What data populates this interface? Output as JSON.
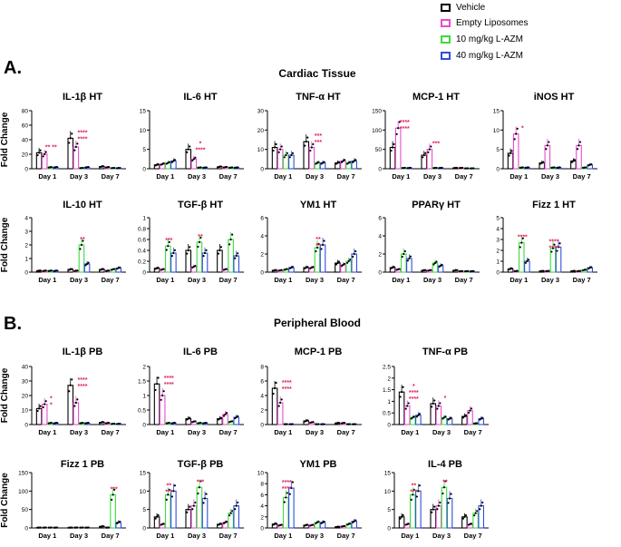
{
  "legend": [
    {
      "label": "Vehicle",
      "color": "#000000"
    },
    {
      "label": "Empty Liposomes",
      "color": "#e94ccf"
    },
    {
      "label": "10 mg/kg L-AZM",
      "color": "#3ddb3d"
    },
    {
      "label": "40 mg/kg L-AZM",
      "color": "#2f4fd6"
    }
  ],
  "sections": [
    {
      "letter": "A.",
      "title": "Cardiac Tissue"
    },
    {
      "letter": "B.",
      "title": "Peripheral Blood"
    }
  ],
  "chart_data": [
    {
      "type": "bar",
      "title": "IL-1β HT",
      "ylabel": "Fold Change",
      "ylim": [
        0,
        80
      ],
      "yticks": [
        0,
        20,
        40,
        60,
        80
      ],
      "categories": [
        "Day 1",
        "Day 3",
        "Day 7"
      ],
      "series": [
        {
          "name": "Vehicle",
          "values": [
            22,
            42,
            3
          ]
        },
        {
          "name": "Empty Liposomes",
          "values": [
            20,
            30,
            2
          ]
        },
        {
          "name": "10 mg/kg L-AZM",
          "values": [
            2,
            1,
            1
          ]
        },
        {
          "name": "40 mg/kg L-AZM",
          "values": [
            2,
            2,
            1
          ]
        }
      ],
      "annotations": [
        {
          "day": 0,
          "text": "** **"
        },
        {
          "day": 1,
          "text": "****"
        },
        {
          "day": 1,
          "text": "****"
        }
      ]
    },
    {
      "type": "bar",
      "title": "IL-6 HT",
      "ylabel": "",
      "ylim": [
        0,
        15
      ],
      "yticks": [
        0,
        5,
        10,
        15
      ],
      "categories": [
        "Day 1",
        "Day 3",
        "Day 7"
      ],
      "series": [
        {
          "name": "Vehicle",
          "values": [
            1,
            5,
            0.5
          ]
        },
        {
          "name": "Empty Liposomes",
          "values": [
            1.2,
            2.5,
            0.4
          ]
        },
        {
          "name": "10 mg/kg L-AZM",
          "values": [
            1.5,
            0.3,
            0.3
          ]
        },
        {
          "name": "40 mg/kg L-AZM",
          "values": [
            2,
            0.3,
            0.3
          ]
        }
      ],
      "annotations": [
        {
          "day": 1,
          "text": "*"
        },
        {
          "day": 1,
          "text": "****"
        }
      ]
    },
    {
      "type": "bar",
      "title": "TNF-α HT",
      "ylabel": "",
      "ylim": [
        0,
        30
      ],
      "yticks": [
        0,
        10,
        20,
        30
      ],
      "categories": [
        "Day 1",
        "Day 3",
        "Day 7"
      ],
      "series": [
        {
          "name": "Vehicle",
          "values": [
            11,
            14,
            3
          ]
        },
        {
          "name": "Empty Liposomes",
          "values": [
            10,
            11,
            4
          ]
        },
        {
          "name": "10 mg/kg L-AZM",
          "values": [
            7,
            3,
            3
          ]
        },
        {
          "name": "40 mg/kg L-AZM",
          "values": [
            7,
            3,
            4
          ]
        }
      ],
      "annotations": [
        {
          "day": 1,
          "text": "***"
        },
        {
          "day": 1,
          "text": "***"
        }
      ]
    },
    {
      "type": "bar",
      "title": "MCP-1 HT",
      "ylabel": "",
      "ylim": [
        0,
        150
      ],
      "yticks": [
        0,
        50,
        100,
        150
      ],
      "categories": [
        "Day 1",
        "Day 3",
        "Day 7"
      ],
      "series": [
        {
          "name": "Vehicle",
          "values": [
            55,
            35,
            2
          ]
        },
        {
          "name": "Empty Liposomes",
          "values": [
            105,
            50,
            2
          ]
        },
        {
          "name": "10 mg/kg L-AZM",
          "values": [
            2,
            2,
            1
          ]
        },
        {
          "name": "40 mg/kg L-AZM",
          "values": [
            2,
            2,
            1
          ]
        }
      ],
      "annotations": [
        {
          "day": 0,
          "text": "****"
        },
        {
          "day": 0,
          "text": "****"
        },
        {
          "day": 1,
          "text": "***"
        }
      ]
    },
    {
      "type": "bar",
      "title": "iNOS HT",
      "ylabel": "",
      "ylim": [
        0,
        15
      ],
      "yticks": [
        0,
        5,
        10,
        15
      ],
      "categories": [
        "Day 1",
        "Day 3",
        "Day 7"
      ],
      "series": [
        {
          "name": "Vehicle",
          "values": [
            4,
            1.5,
            2
          ]
        },
        {
          "name": "Empty Liposomes",
          "values": [
            9,
            6,
            6
          ]
        },
        {
          "name": "10 mg/kg L-AZM",
          "values": [
            0.3,
            0.3,
            0.3
          ]
        },
        {
          "name": "40 mg/kg L-AZM",
          "values": [
            0.3,
            0.3,
            1
          ]
        }
      ],
      "annotations": [
        {
          "day": 0,
          "text": "*"
        }
      ]
    },
    {
      "type": "bar",
      "title": "IL-10 HT",
      "ylabel": "Fold Change",
      "ylim": [
        0,
        4
      ],
      "yticks": [
        0,
        1,
        2,
        3,
        4
      ],
      "categories": [
        "Day 1",
        "Day 3",
        "Day 7"
      ],
      "series": [
        {
          "name": "Vehicle",
          "values": [
            0.1,
            0.2,
            0.2
          ]
        },
        {
          "name": "Empty Liposomes",
          "values": [
            0.1,
            0.1,
            0.1
          ]
        },
        {
          "name": "10 mg/kg L-AZM",
          "values": [
            0.1,
            2.0,
            0.2
          ]
        },
        {
          "name": "40 mg/kg L-AZM",
          "values": [
            0.1,
            0.6,
            0.3
          ]
        }
      ],
      "annotations": [
        {
          "day": 1,
          "text": "**"
        }
      ]
    },
    {
      "type": "bar",
      "title": "TGF-β HT",
      "ylabel": "",
      "ylim": [
        0,
        1.0
      ],
      "yticks": [
        0,
        0.2,
        0.4,
        0.6,
        0.8,
        1.0
      ],
      "categories": [
        "Day 1",
        "Day 3",
        "Day 7"
      ],
      "series": [
        {
          "name": "Vehicle",
          "values": [
            0.07,
            0.4,
            0.4
          ]
        },
        {
          "name": "Empty Liposomes",
          "values": [
            0.05,
            0.1,
            0.05
          ]
        },
        {
          "name": "10 mg/kg L-AZM",
          "values": [
            0.48,
            0.55,
            0.6
          ]
        },
        {
          "name": "40 mg/kg L-AZM",
          "values": [
            0.35,
            0.35,
            0.3
          ]
        }
      ],
      "annotations": [
        {
          "day": 0,
          "text": "***"
        },
        {
          "day": 1,
          "text": "**"
        }
      ]
    },
    {
      "type": "bar",
      "title": "YM1 HT",
      "ylabel": "",
      "ylim": [
        0,
        6
      ],
      "yticks": [
        0,
        2,
        4,
        6
      ],
      "categories": [
        "Day 1",
        "Day 3",
        "Day 7"
      ],
      "series": [
        {
          "name": "Vehicle",
          "values": [
            0.2,
            0.5,
            1
          ]
        },
        {
          "name": "Empty Liposomes",
          "values": [
            0.2,
            0.5,
            0.8
          ]
        },
        {
          "name": "10 mg/kg L-AZM",
          "values": [
            0.3,
            2.7,
            1.2
          ]
        },
        {
          "name": "40 mg/kg L-AZM",
          "values": [
            0.5,
            3.0,
            2.0
          ]
        }
      ],
      "annotations": [
        {
          "day": 1,
          "text": "**"
        },
        {
          "day": 1,
          "text": "**"
        }
      ]
    },
    {
      "type": "bar",
      "title": "PPARγ HT",
      "ylabel": "",
      "ylim": [
        0,
        6
      ],
      "yticks": [
        0,
        2,
        4,
        6
      ],
      "categories": [
        "Day 1",
        "Day 3",
        "Day 7"
      ],
      "series": [
        {
          "name": "Vehicle",
          "values": [
            0.5,
            0.2,
            0.2
          ]
        },
        {
          "name": "Empty Liposomes",
          "values": [
            0.3,
            0.2,
            0.1
          ]
        },
        {
          "name": "10 mg/kg L-AZM",
          "values": [
            2,
            1,
            0.1
          ]
        },
        {
          "name": "40 mg/kg L-AZM",
          "values": [
            1.5,
            0.7,
            0.1
          ]
        }
      ],
      "annotations": []
    },
    {
      "type": "bar",
      "title": "Fizz 1 HT",
      "ylabel": "",
      "ylim": [
        0,
        5
      ],
      "yticks": [
        0,
        1,
        2,
        3,
        4,
        5
      ],
      "categories": [
        "Day 1",
        "Day 3",
        "Day 7"
      ],
      "series": [
        {
          "name": "Vehicle",
          "values": [
            0.3,
            0.1,
            0.1
          ]
        },
        {
          "name": "Empty Liposomes",
          "values": [
            0.1,
            0.1,
            0.1
          ]
        },
        {
          "name": "10 mg/kg L-AZM",
          "values": [
            2.7,
            2.2,
            0.2
          ]
        },
        {
          "name": "40 mg/kg L-AZM",
          "values": [
            1,
            2.3,
            0.4
          ]
        }
      ],
      "annotations": [
        {
          "day": 0,
          "text": "****"
        },
        {
          "day": 1,
          "text": "****"
        },
        {
          "day": 1,
          "text": "****"
        }
      ]
    },
    {
      "type": "bar",
      "title": "IL-1β PB",
      "ylabel": "Fold Change",
      "ylim": [
        0,
        40
      ],
      "yticks": [
        0,
        10,
        20,
        30,
        40
      ],
      "categories": [
        "Day 1",
        "Day 3",
        "Day 7"
      ],
      "series": [
        {
          "name": "Vehicle",
          "values": [
            11,
            27,
            1.5
          ]
        },
        {
          "name": "Empty Liposomes",
          "values": [
            14,
            15,
            1
          ]
        },
        {
          "name": "10 mg/kg L-AZM",
          "values": [
            1,
            1,
            0.5
          ]
        },
        {
          "name": "40 mg/kg L-AZM",
          "values": [
            1,
            1,
            0.5
          ]
        }
      ],
      "annotations": [
        {
          "day": 0,
          "text": "*"
        },
        {
          "day": 0,
          "text": "*"
        },
        {
          "day": 1,
          "text": "****"
        },
        {
          "day": 1,
          "text": "****"
        }
      ]
    },
    {
      "type": "bar",
      "title": "IL-6 PB",
      "ylabel": "",
      "ylim": [
        0,
        2.0
      ],
      "yticks": [
        0,
        0.5,
        1.0,
        1.5,
        2.0
      ],
      "categories": [
        "Day 1",
        "Day 3",
        "Day 7"
      ],
      "series": [
        {
          "name": "Vehicle",
          "values": [
            1.4,
            0.2,
            0.2
          ]
        },
        {
          "name": "Empty Liposomes",
          "values": [
            1.0,
            0.1,
            0.35
          ]
        },
        {
          "name": "10 mg/kg L-AZM",
          "values": [
            0.05,
            0.05,
            0.1
          ]
        },
        {
          "name": "40 mg/kg L-AZM",
          "values": [
            0.05,
            0.05,
            0.25
          ]
        }
      ],
      "annotations": [
        {
          "day": 0,
          "text": "****"
        },
        {
          "day": 0,
          "text": "****"
        }
      ]
    },
    {
      "type": "bar",
      "title": "MCP-1 PB",
      "ylabel": "",
      "ylim": [
        0,
        8
      ],
      "yticks": [
        0,
        2,
        4,
        6,
        8
      ],
      "categories": [
        "Day 1",
        "Day 3",
        "Day 7"
      ],
      "series": [
        {
          "name": "Vehicle",
          "values": [
            5,
            0.5,
            0.2
          ]
        },
        {
          "name": "Empty Liposomes",
          "values": [
            3,
            0.3,
            0.2
          ]
        },
        {
          "name": "10 mg/kg L-AZM",
          "values": [
            0.05,
            0.05,
            0.05
          ]
        },
        {
          "name": "40 mg/kg L-AZM",
          "values": [
            0.05,
            0.05,
            0.05
          ]
        }
      ],
      "annotations": [
        {
          "day": 0,
          "text": "****"
        },
        {
          "day": 0,
          "text": "****"
        }
      ]
    },
    {
      "type": "bar",
      "title": "TNF-α PB",
      "ylabel": "",
      "ylim": [
        0,
        2.5
      ],
      "yticks": [
        0,
        0.5,
        1.0,
        1.5,
        2.0,
        2.5
      ],
      "categories": [
        "Day 1",
        "Day 3",
        "Day 7"
      ],
      "series": [
        {
          "name": "Vehicle",
          "values": [
            1.4,
            0.9,
            0.35
          ]
        },
        {
          "name": "Empty Liposomes",
          "values": [
            0.8,
            0.8,
            0.6
          ]
        },
        {
          "name": "10 mg/kg L-AZM",
          "values": [
            0.3,
            0.3,
            0.05
          ]
        },
        {
          "name": "40 mg/kg L-AZM",
          "values": [
            0.4,
            0.25,
            0.25
          ]
        }
      ],
      "annotations": [
        {
          "day": 0,
          "text": "*"
        },
        {
          "day": 0,
          "text": "****"
        },
        {
          "day": 0,
          "text": "****"
        },
        {
          "day": 1,
          "text": "*"
        }
      ]
    },
    {
      "type": "bar",
      "title": "Fizz 1 PB",
      "ylabel": "Fold Change",
      "ylim": [
        0,
        150
      ],
      "yticks": [
        0,
        50,
        100,
        150
      ],
      "categories": [
        "Day 1",
        "Day 3",
        "Day 7"
      ],
      "series": [
        {
          "name": "Vehicle",
          "values": [
            1,
            1,
            4
          ]
        },
        {
          "name": "Empty Liposomes",
          "values": [
            1,
            1,
            1
          ]
        },
        {
          "name": "10 mg/kg L-AZM",
          "values": [
            1,
            1,
            90
          ]
        },
        {
          "name": "40 mg/kg L-AZM",
          "values": [
            1,
            1,
            15
          ]
        }
      ],
      "annotations": [
        {
          "day": 2,
          "text": "***"
        }
      ]
    },
    {
      "type": "bar",
      "title": "TGF-β PB",
      "ylabel": "",
      "ylim": [
        0,
        15
      ],
      "yticks": [
        0,
        5,
        10,
        15
      ],
      "categories": [
        "Day 1",
        "Day 3",
        "Day 7"
      ],
      "series": [
        {
          "name": "Vehicle",
          "values": [
            3,
            5,
            1
          ]
        },
        {
          "name": "Empty Liposomes",
          "values": [
            1,
            6,
            1.5
          ]
        },
        {
          "name": "10 mg/kg L-AZM",
          "values": [
            9,
            11,
            4
          ]
        },
        {
          "name": "40 mg/kg L-AZM",
          "values": [
            10,
            8,
            6
          ]
        }
      ],
      "annotations": [
        {
          "day": 0,
          "text": "**"
        },
        {
          "day": 0,
          "text": "***"
        },
        {
          "day": 1,
          "text": "***"
        }
      ]
    },
    {
      "type": "bar",
      "title": "YM1 PB",
      "ylabel": "",
      "ylim": [
        0,
        10
      ],
      "yticks": [
        0,
        2,
        4,
        6,
        8,
        10
      ],
      "categories": [
        "Day 1",
        "Day 3",
        "Day 7"
      ],
      "series": [
        {
          "name": "Vehicle",
          "values": [
            0.7,
            0.5,
            0.2
          ]
        },
        {
          "name": "Empty Liposomes",
          "values": [
            0.5,
            0.5,
            0.3
          ]
        },
        {
          "name": "10 mg/kg L-AZM",
          "values": [
            5.5,
            1,
            0.7
          ]
        },
        {
          "name": "40 mg/kg L-AZM",
          "values": [
            7.2,
            1,
            1.2
          ]
        }
      ],
      "annotations": [
        {
          "day": 0,
          "text": "****"
        },
        {
          "day": 0,
          "text": "****"
        }
      ]
    },
    {
      "type": "bar",
      "title": "IL-4 PB",
      "ylabel": "",
      "ylim": [
        0,
        15
      ],
      "yticks": [
        0,
        5,
        10,
        15
      ],
      "categories": [
        "Day 1",
        "Day 3",
        "Day 7"
      ],
      "series": [
        {
          "name": "Vehicle",
          "values": [
            3,
            5,
            3
          ]
        },
        {
          "name": "Empty Liposomes",
          "values": [
            1,
            6,
            1
          ]
        },
        {
          "name": "10 mg/kg L-AZM",
          "values": [
            9,
            11,
            4
          ]
        },
        {
          "name": "40 mg/kg L-AZM",
          "values": [
            10,
            8,
            6
          ]
        }
      ],
      "annotations": [
        {
          "day": 0,
          "text": "**"
        },
        {
          "day": 0,
          "text": "***"
        },
        {
          "day": 1,
          "text": "**"
        }
      ]
    }
  ]
}
